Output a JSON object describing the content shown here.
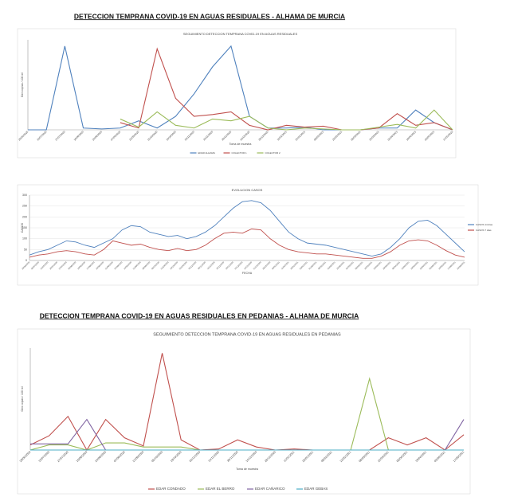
{
  "headings": [
    "DETECCION TEMPRANA COVID-19 EN AGUAS RESIDUALES - ALHAMA DE MURCIA",
    "DETECCION TEMPRANA COVID-19 EN AGUAS RESIDUALES EN PEDANIAS - ALHAMA DE MURCIA"
  ],
  "chart_data": [
    {
      "type": "line",
      "title": "SEGUIMIENTO DETECCION TEMPRANA COVID-19 EN AGUAS RESIDUALES",
      "ylabel": "Gen copias / 100 ml",
      "xlabel": "Toma de muestra",
      "legend": "bottom",
      "grid": false,
      "ylim": [
        0,
        100
      ],
      "categories": [
        "29/06/2020",
        "13/07/2020",
        "27/07/2020",
        "10/08/2020",
        "24/08/2020",
        "07/09/2020",
        "21/09/2020",
        "05/10/2020",
        "19/10/2020",
        "02/11/2020",
        "16/11/2020",
        "30/11/2020",
        "14/12/2020",
        "28/12/2020",
        "11/01/2021",
        "25/01/2021",
        "08/02/2021",
        "22/02/2021",
        "08/03/2021",
        "22/03/2021",
        "05/04/2021",
        "19/04/2021",
        "03/05/2021",
        "17/05/2021"
      ],
      "series": [
        {
          "name": "EDAR ALHAMA",
          "color": "#4f81bd",
          "values": [
            0,
            0,
            93,
            2,
            1,
            2,
            10,
            2,
            15,
            40,
            70,
            93,
            15,
            2,
            2,
            3,
            0,
            0,
            0,
            2,
            2,
            22,
            8,
            0
          ]
        },
        {
          "name": "COLECTOR 1",
          "color": "#c0504d",
          "values": [
            null,
            null,
            null,
            null,
            null,
            8,
            2,
            90,
            35,
            15,
            17,
            20,
            5,
            0,
            5,
            3,
            4,
            0,
            0,
            2,
            18,
            5,
            8,
            0
          ]
        },
        {
          "name": "COLECTOR 2",
          "color": "#9bbb59",
          "values": [
            null,
            null,
            null,
            null,
            null,
            12,
            3,
            20,
            5,
            2,
            12,
            10,
            15,
            2,
            0,
            2,
            1,
            0,
            0,
            3,
            6,
            2,
            22,
            0
          ]
        }
      ]
    },
    {
      "type": "line",
      "title": "EVOLUCION CASOS",
      "ylabel": "CASOS",
      "xlabel": "FECHA",
      "legend": "right",
      "grid": true,
      "ylim": [
        0,
        300
      ],
      "yticks": [
        0,
        50,
        100,
        150,
        200,
        250,
        300
      ],
      "categories": [
        "29/06/2020",
        "06/07/2020",
        "13/07/2020",
        "20/07/2020",
        "27/07/2020",
        "03/08/2020",
        "10/08/2020",
        "17/08/2020",
        "24/08/2020",
        "31/08/2020",
        "07/09/2020",
        "14/09/2020",
        "21/09/2020",
        "28/09/2020",
        "05/10/2020",
        "12/10/2020",
        "19/10/2020",
        "26/10/2020",
        "02/11/2020",
        "09/11/2020",
        "16/11/2020",
        "23/11/2020",
        "30/11/2020",
        "07/12/2020",
        "14/12/2020",
        "21/12/2020",
        "28/12/2020",
        "04/01/2021",
        "11/01/2021",
        "18/01/2021",
        "25/01/2021",
        "01/02/2021",
        "08/02/2021",
        "15/02/2021",
        "22/02/2021",
        "01/03/2021",
        "08/03/2021",
        "15/03/2021",
        "22/03/2021",
        "29/03/2021",
        "05/04/2021",
        "12/04/2021",
        "19/04/2021",
        "26/04/2021",
        "03/05/2021",
        "10/05/2021",
        "17/05/2021",
        "24/05/2021"
      ],
      "series": [
        {
          "name": "CASOS 14 días",
          "color": "#4f81bd",
          "values": [
            25,
            40,
            50,
            70,
            90,
            85,
            70,
            60,
            80,
            100,
            140,
            160,
            155,
            130,
            120,
            110,
            115,
            100,
            110,
            130,
            160,
            200,
            240,
            270,
            275,
            265,
            230,
            180,
            130,
            100,
            80,
            75,
            70,
            60,
            50,
            40,
            30,
            20,
            30,
            60,
            100,
            150,
            180,
            185,
            160,
            120,
            80,
            40
          ]
        },
        {
          "name": "CASOS 7 días",
          "color": "#c0504d",
          "values": [
            15,
            25,
            30,
            40,
            45,
            40,
            30,
            25,
            50,
            90,
            80,
            70,
            75,
            60,
            50,
            45,
            55,
            45,
            50,
            70,
            100,
            125,
            130,
            125,
            145,
            140,
            100,
            70,
            50,
            40,
            35,
            30,
            30,
            25,
            20,
            15,
            10,
            10,
            20,
            40,
            70,
            90,
            95,
            90,
            70,
            45,
            25,
            15
          ]
        }
      ]
    },
    {
      "type": "line",
      "title": "SEGUIMIENTO DETECCION TEMPRANA COVID-19 EN AGUAS RESIDUALES EN PEDANIAS",
      "ylabel": "Gen copias / 100 ml",
      "xlabel": "Toma de muestra",
      "legend": "bottom",
      "grid": false,
      "ylim": [
        0,
        100
      ],
      "categories": [
        "29/06/2020",
        "13/07/2020",
        "27/07/2020",
        "10/08/2020",
        "24/08/2020",
        "07/09/2020",
        "21/09/2020",
        "05/10/2020",
        "19/10/2020",
        "02/11/2020",
        "16/11/2020",
        "30/11/2020",
        "14/12/2020",
        "28/12/2020",
        "11/01/2021",
        "25/01/2021",
        "08/02/2021",
        "22/02/2021",
        "08/03/2021",
        "22/03/2021",
        "05/04/2021",
        "19/04/2021",
        "03/05/2021",
        "17/05/2021"
      ],
      "series": [
        {
          "name": "EDAR CONDADO",
          "color": "#c0504d",
          "values": [
            5,
            14,
            33,
            0,
            30,
            12,
            4,
            95,
            10,
            0,
            1,
            10,
            3,
            0,
            1,
            0,
            0,
            0,
            0,
            12,
            5,
            12,
            0,
            15
          ]
        },
        {
          "name": "EDAR EL BERRO",
          "color": "#9bbb59",
          "values": [
            0,
            5,
            5,
            0,
            7,
            7,
            3,
            3,
            3,
            0,
            0,
            0,
            0,
            0,
            0,
            0,
            0,
            0,
            70,
            0,
            0,
            0,
            0,
            0
          ]
        },
        {
          "name": "EDAR CAÑARICO",
          "color": "#8064a2",
          "values": [
            6,
            6,
            6,
            30,
            0,
            null,
            null,
            null,
            null,
            null,
            null,
            null,
            null,
            null,
            null,
            null,
            null,
            null,
            null,
            null,
            null,
            null,
            0,
            30
          ]
        },
        {
          "name": "EDAR GEBAS",
          "color": "#4bacc6",
          "values": [
            0,
            0,
            0,
            0,
            0,
            0,
            0,
            0,
            0,
            0,
            0,
            0,
            0,
            0,
            0,
            0,
            0,
            0,
            0,
            0,
            0,
            0,
            0,
            0
          ]
        }
      ]
    }
  ]
}
